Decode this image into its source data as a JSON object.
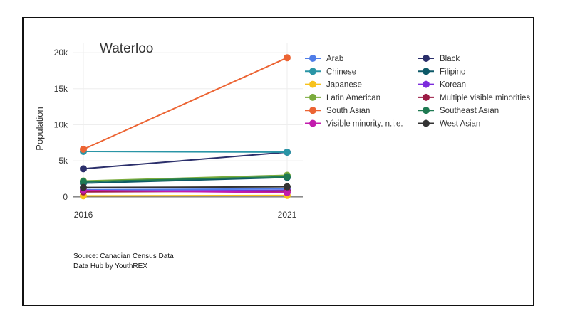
{
  "chart_data": {
    "type": "line",
    "title": "Waterloo",
    "xlabel": "",
    "ylabel": "Population",
    "x": [
      "2016",
      "2021"
    ],
    "y_ticks": [
      {
        "value": 0,
        "label": "0"
      },
      {
        "value": 5000,
        "label": "5k"
      },
      {
        "value": 10000,
        "label": "10k"
      },
      {
        "value": 15000,
        "label": "15k"
      },
      {
        "value": 20000,
        "label": "20k"
      }
    ],
    "ylim": [
      -1000,
      20800
    ],
    "grid": true,
    "legend_position": "right",
    "series": [
      {
        "name": "Arab",
        "color": "#4f7de8",
        "values": [
          1000,
          1100
        ]
      },
      {
        "name": "Black",
        "color": "#2b2f6b",
        "values": [
          3900,
          6200
        ]
      },
      {
        "name": "Chinese",
        "color": "#2a95a6",
        "values": [
          6300,
          6200
        ]
      },
      {
        "name": "Filipino",
        "color": "#0d5968",
        "values": [
          1900,
          2700
        ]
      },
      {
        "name": "Japanese",
        "color": "#f7c21c",
        "values": [
          150,
          200
        ]
      },
      {
        "name": "Korean",
        "color": "#7c2cdc",
        "values": [
          800,
          900
        ]
      },
      {
        "name": "Latin American",
        "color": "#7aab3c",
        "values": [
          2200,
          3000
        ]
      },
      {
        "name": "Multiple visible minorities",
        "color": "#9c1c45",
        "values": [
          700,
          800
        ]
      },
      {
        "name": "South Asian",
        "color": "#ec6433",
        "values": [
          6600,
          19300
        ]
      },
      {
        "name": "Southeast Asian",
        "color": "#1f7a52",
        "values": [
          2100,
          2800
        ]
      },
      {
        "name": "Visible minority, n.i.e.",
        "color": "#c21cad",
        "values": [
          900,
          600
        ]
      },
      {
        "name": "West Asian",
        "color": "#333333",
        "values": [
          1300,
          1400
        ]
      }
    ]
  },
  "source": {
    "line1": "Source: Canadian Census Data",
    "line2": "Data Hub by YouthREX"
  }
}
